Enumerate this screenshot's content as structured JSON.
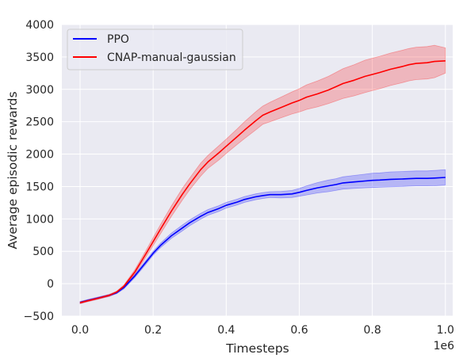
{
  "chart_data": {
    "type": "line",
    "xlabel": "Timesteps",
    "ylabel": "Average episodic rewards",
    "x_multiplier_label": "1e6",
    "xlim": [
      -0.05,
      1.02
    ],
    "ylim": [
      -500,
      4000
    ],
    "xticks": [
      0.0,
      0.2,
      0.4,
      0.6,
      0.8,
      1.0
    ],
    "xtick_labels": [
      "0.0",
      "0.2",
      "0.4",
      "0.6",
      "0.8",
      "1.0"
    ],
    "yticks": [
      -500,
      0,
      500,
      1000,
      1500,
      2000,
      2500,
      3000,
      3500,
      4000
    ],
    "ytick_labels": [
      "−500",
      "0",
      "500",
      "1000",
      "1500",
      "2000",
      "2500",
      "3000",
      "3500",
      "4000"
    ],
    "grid": true,
    "legend_position": "top-left",
    "background_color": "#eaeaf2",
    "series": [
      {
        "name": "PPO",
        "color": "#0000ff",
        "x": [
          0.0,
          0.02,
          0.05,
          0.08,
          0.1,
          0.12,
          0.15,
          0.18,
          0.2,
          0.22,
          0.25,
          0.28,
          0.3,
          0.33,
          0.35,
          0.38,
          0.4,
          0.43,
          0.45,
          0.48,
          0.5,
          0.52,
          0.55,
          0.58,
          0.6,
          0.62,
          0.65,
          0.68,
          0.7,
          0.72,
          0.75,
          0.78,
          0.8,
          0.82,
          0.85,
          0.88,
          0.9,
          0.92,
          0.95,
          0.97,
          1.0
        ],
        "y": [
          -290,
          -260,
          -220,
          -180,
          -140,
          -60,
          120,
          330,
          470,
          590,
          740,
          860,
          940,
          1040,
          1100,
          1160,
          1210,
          1260,
          1300,
          1340,
          1360,
          1375,
          1375,
          1385,
          1410,
          1440,
          1480,
          1510,
          1530,
          1555,
          1570,
          1585,
          1595,
          1600,
          1610,
          1615,
          1620,
          1625,
          1625,
          1630,
          1640
        ],
        "lower": [
          -305,
          -275,
          -235,
          -195,
          -155,
          -80,
          95,
          300,
          440,
          555,
          700,
          815,
          895,
          995,
          1055,
          1115,
          1165,
          1215,
          1255,
          1295,
          1315,
          1330,
          1325,
          1330,
          1350,
          1370,
          1400,
          1420,
          1440,
          1460,
          1470,
          1480,
          1485,
          1490,
          1495,
          1500,
          1505,
          1510,
          1510,
          1512,
          1520
        ],
        "upper": [
          -275,
          -245,
          -205,
          -165,
          -125,
          -40,
          145,
          360,
          500,
          625,
          780,
          905,
          985,
          1085,
          1145,
          1205,
          1255,
          1305,
          1345,
          1385,
          1405,
          1420,
          1425,
          1440,
          1470,
          1510,
          1560,
          1600,
          1620,
          1650,
          1670,
          1690,
          1705,
          1710,
          1725,
          1730,
          1735,
          1740,
          1740,
          1748,
          1760
        ]
      },
      {
        "name": "CNAP-manual-gaussian",
        "color": "#ff0000",
        "x": [
          0.0,
          0.02,
          0.05,
          0.08,
          0.1,
          0.12,
          0.15,
          0.18,
          0.2,
          0.22,
          0.25,
          0.28,
          0.3,
          0.33,
          0.35,
          0.38,
          0.4,
          0.43,
          0.45,
          0.48,
          0.5,
          0.52,
          0.55,
          0.58,
          0.6,
          0.62,
          0.65,
          0.68,
          0.7,
          0.72,
          0.75,
          0.78,
          0.8,
          0.82,
          0.85,
          0.88,
          0.9,
          0.92,
          0.95,
          0.97,
          1.0
        ],
        "y": [
          -295,
          -265,
          -225,
          -180,
          -130,
          -40,
          180,
          460,
          650,
          840,
          1120,
          1380,
          1540,
          1760,
          1880,
          2020,
          2120,
          2270,
          2370,
          2510,
          2600,
          2650,
          2720,
          2790,
          2830,
          2880,
          2930,
          2990,
          3040,
          3090,
          3140,
          3200,
          3230,
          3260,
          3310,
          3350,
          3380,
          3400,
          3410,
          3430,
          3440
        ],
        "lower": [
          -310,
          -280,
          -240,
          -195,
          -145,
          -60,
          145,
          410,
          590,
          770,
          1040,
          1290,
          1450,
          1660,
          1780,
          1910,
          2010,
          2150,
          2240,
          2370,
          2460,
          2500,
          2560,
          2620,
          2650,
          2690,
          2730,
          2780,
          2820,
          2860,
          2900,
          2950,
          2980,
          3010,
          3060,
          3100,
          3130,
          3150,
          3160,
          3180,
          3250
        ],
        "upper": [
          -280,
          -250,
          -210,
          -165,
          -115,
          -20,
          215,
          510,
          710,
          910,
          1200,
          1470,
          1630,
          1860,
          1980,
          2130,
          2230,
          2390,
          2500,
          2650,
          2740,
          2800,
          2880,
          2960,
          3010,
          3070,
          3130,
          3200,
          3260,
          3320,
          3380,
          3450,
          3480,
          3510,
          3560,
          3600,
          3630,
          3650,
          3660,
          3680,
          3640
        ]
      }
    ]
  }
}
